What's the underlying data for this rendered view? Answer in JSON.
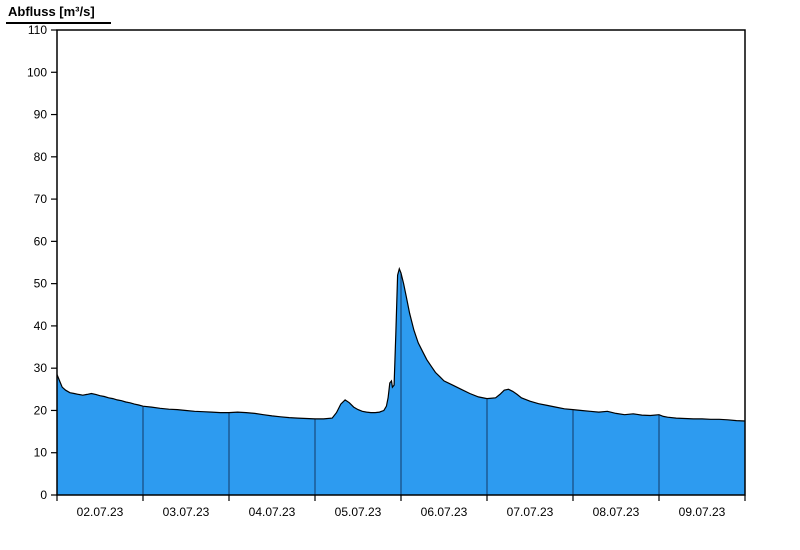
{
  "title": "Abfluss [m³/s]",
  "colors": {
    "fill": "#2d9bf0",
    "line": "#000000",
    "day_divider": "#123a66",
    "frame": "#000000",
    "background": "#ffffff"
  },
  "chart_data": {
    "type": "area",
    "title": "Abfluss [m³/s]",
    "ylabel": "Abfluss [m³/s]",
    "xlabel": "",
    "ylim": [
      0,
      110
    ],
    "ytick_step": 10,
    "yticks": [
      0,
      10,
      20,
      30,
      40,
      50,
      60,
      70,
      80,
      90,
      100,
      110
    ],
    "x_range_days": [
      0,
      8
    ],
    "x_day_labels": [
      "02.07.23",
      "03.07.23",
      "04.07.23",
      "05.07.23",
      "06.07.23",
      "07.07.23",
      "08.07.23",
      "09.07.23"
    ],
    "grid": false,
    "legend": false,
    "points": [
      [
        0.0,
        28.5
      ],
      [
        0.03,
        27.0
      ],
      [
        0.06,
        25.5
      ],
      [
        0.1,
        24.8
      ],
      [
        0.15,
        24.2
      ],
      [
        0.2,
        24.0
      ],
      [
        0.25,
        23.8
      ],
      [
        0.3,
        23.6
      ],
      [
        0.35,
        23.8
      ],
      [
        0.4,
        24.0
      ],
      [
        0.45,
        23.8
      ],
      [
        0.5,
        23.5
      ],
      [
        0.55,
        23.3
      ],
      [
        0.6,
        23.0
      ],
      [
        0.65,
        22.8
      ],
      [
        0.7,
        22.5
      ],
      [
        0.75,
        22.3
      ],
      [
        0.8,
        22.0
      ],
      [
        0.85,
        21.8
      ],
      [
        0.9,
        21.5
      ],
      [
        0.95,
        21.3
      ],
      [
        1.0,
        21.0
      ],
      [
        1.1,
        20.8
      ],
      [
        1.2,
        20.5
      ],
      [
        1.3,
        20.3
      ],
      [
        1.4,
        20.2
      ],
      [
        1.5,
        20.0
      ],
      [
        1.6,
        19.8
      ],
      [
        1.7,
        19.7
      ],
      [
        1.8,
        19.6
      ],
      [
        1.9,
        19.5
      ],
      [
        2.0,
        19.5
      ],
      [
        2.1,
        19.6
      ],
      [
        2.2,
        19.5
      ],
      [
        2.3,
        19.3
      ],
      [
        2.4,
        19.0
      ],
      [
        2.5,
        18.7
      ],
      [
        2.6,
        18.5
      ],
      [
        2.7,
        18.3
      ],
      [
        2.8,
        18.2
      ],
      [
        2.9,
        18.1
      ],
      [
        3.0,
        18.0
      ],
      [
        3.1,
        18.0
      ],
      [
        3.2,
        18.2
      ],
      [
        3.25,
        19.5
      ],
      [
        3.3,
        21.5
      ],
      [
        3.35,
        22.5
      ],
      [
        3.4,
        21.8
      ],
      [
        3.45,
        20.8
      ],
      [
        3.5,
        20.2
      ],
      [
        3.55,
        19.8
      ],
      [
        3.6,
        19.6
      ],
      [
        3.65,
        19.5
      ],
      [
        3.7,
        19.5
      ],
      [
        3.75,
        19.6
      ],
      [
        3.8,
        20.0
      ],
      [
        3.83,
        21.0
      ],
      [
        3.85,
        23.0
      ],
      [
        3.87,
        26.5
      ],
      [
        3.89,
        27.0
      ],
      [
        3.9,
        25.5
      ],
      [
        3.92,
        26.0
      ],
      [
        3.94,
        38.0
      ],
      [
        3.96,
        52.0
      ],
      [
        3.98,
        53.5
      ],
      [
        4.0,
        52.5
      ],
      [
        4.03,
        50.0
      ],
      [
        4.06,
        47.0
      ],
      [
        4.1,
        43.0
      ],
      [
        4.15,
        39.0
      ],
      [
        4.2,
        36.0
      ],
      [
        4.25,
        34.0
      ],
      [
        4.3,
        32.0
      ],
      [
        4.35,
        30.5
      ],
      [
        4.4,
        29.0
      ],
      [
        4.45,
        28.0
      ],
      [
        4.5,
        27.0
      ],
      [
        4.6,
        26.0
      ],
      [
        4.7,
        25.0
      ],
      [
        4.8,
        24.0
      ],
      [
        4.9,
        23.2
      ],
      [
        5.0,
        22.8
      ],
      [
        5.1,
        23.0
      ],
      [
        5.15,
        23.8
      ],
      [
        5.2,
        24.8
      ],
      [
        5.25,
        25.0
      ],
      [
        5.3,
        24.5
      ],
      [
        5.35,
        23.8
      ],
      [
        5.4,
        23.0
      ],
      [
        5.5,
        22.2
      ],
      [
        5.6,
        21.6
      ],
      [
        5.7,
        21.2
      ],
      [
        5.8,
        20.8
      ],
      [
        5.9,
        20.4
      ],
      [
        6.0,
        20.2
      ],
      [
        6.1,
        20.0
      ],
      [
        6.2,
        19.8
      ],
      [
        6.3,
        19.6
      ],
      [
        6.4,
        19.8
      ],
      [
        6.5,
        19.3
      ],
      [
        6.6,
        19.0
      ],
      [
        6.7,
        19.2
      ],
      [
        6.8,
        18.9
      ],
      [
        6.9,
        18.8
      ],
      [
        7.0,
        19.0
      ],
      [
        7.05,
        18.6
      ],
      [
        7.1,
        18.4
      ],
      [
        7.2,
        18.2
      ],
      [
        7.3,
        18.1
      ],
      [
        7.4,
        18.0
      ],
      [
        7.5,
        18.0
      ],
      [
        7.6,
        17.9
      ],
      [
        7.7,
        17.9
      ],
      [
        7.8,
        17.8
      ],
      [
        7.9,
        17.6
      ],
      [
        8.0,
        17.5
      ]
    ]
  }
}
